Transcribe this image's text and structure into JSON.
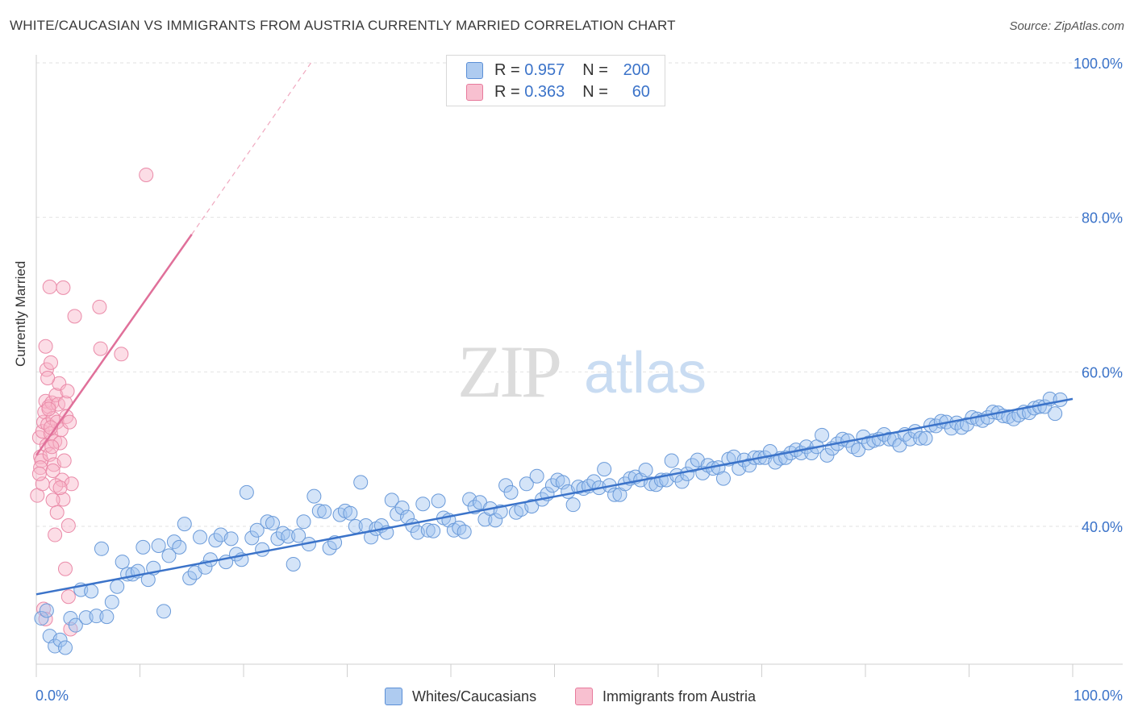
{
  "title": "WHITE/CAUCASIAN VS IMMIGRANTS FROM AUSTRIA CURRENTLY MARRIED CORRELATION CHART",
  "source": "Source: ZipAtlas.com",
  "watermark": {
    "zip": "ZIP",
    "atlas": "atlas"
  },
  "legend": {
    "r_label": "R =",
    "n_label": "N =",
    "rows": [
      {
        "r": "0.957",
        "n": "200",
        "fill": "#aecbf0",
        "stroke": "#5b8fd6"
      },
      {
        "r": "0.363",
        "n": "60",
        "fill": "#f8c0d0",
        "stroke": "#e77a9c"
      }
    ]
  },
  "bottom_legend": [
    {
      "label": "Whites/Caucasians",
      "fill": "#aecbf0",
      "stroke": "#5b8fd6"
    },
    {
      "label": "Immigrants from Austria",
      "fill": "#f8c0d0",
      "stroke": "#e77a9c"
    }
  ],
  "colors": {
    "blue": "#3b73c9",
    "blue_fill": "rgba(160,195,240,0.45)",
    "blue_stroke": "#6a9ad9",
    "pink": "#e0709a",
    "pink_fill": "rgba(248,180,200,0.45)",
    "pink_stroke": "#ea8aa8",
    "grid": "#e2e2e2",
    "tick_label": "#3b73c9"
  },
  "chart_data": {
    "type": "scatter",
    "title": "WHITE/CAUCASIAN VS IMMIGRANTS FROM AUSTRIA CURRENTLY MARRIED CORRELATION CHART",
    "xlabel": "",
    "ylabel": "Currently Married",
    "xlim": [
      0,
      100
    ],
    "ylim": [
      20,
      102
    ],
    "x_tick_labels": [
      "0.0%",
      "100.0%"
    ],
    "y_ticks": [
      40,
      60,
      80,
      100
    ],
    "y_tick_labels": [
      "40.0%",
      "60.0%",
      "80.0%",
      "100.0%"
    ],
    "grid": true,
    "series": [
      {
        "name": "Whites/Caucasians",
        "r": 0.957,
        "n": 200,
        "trend": {
          "x": [
            0,
            100
          ],
          "y": [
            31.2,
            56.5
          ]
        },
        "points": [
          [
            0.5,
            28.1
          ],
          [
            1.0,
            29.1
          ],
          [
            1.3,
            25.8
          ],
          [
            1.8,
            24.5
          ],
          [
            2.3,
            25.3
          ],
          [
            2.8,
            24.3
          ],
          [
            3.3,
            28.1
          ],
          [
            3.8,
            27.2
          ],
          [
            4.3,
            31.8
          ],
          [
            4.8,
            28.2
          ],
          [
            5.3,
            31.6
          ],
          [
            5.8,
            28.4
          ],
          [
            6.3,
            37.1
          ],
          [
            6.8,
            28.3
          ],
          [
            7.3,
            30.2
          ],
          [
            7.8,
            32.2
          ],
          [
            8.3,
            35.4
          ],
          [
            8.8,
            33.8
          ],
          [
            9.3,
            33.8
          ],
          [
            9.8,
            34.2
          ],
          [
            10.3,
            37.3
          ],
          [
            10.8,
            33.1
          ],
          [
            11.3,
            34.6
          ],
          [
            11.8,
            37.5
          ],
          [
            12.3,
            29.0
          ],
          [
            12.8,
            36.2
          ],
          [
            13.3,
            38.0
          ],
          [
            13.8,
            37.3
          ],
          [
            14.3,
            40.3
          ],
          [
            14.8,
            33.3
          ],
          [
            15.3,
            34.0
          ],
          [
            15.8,
            38.6
          ],
          [
            16.3,
            34.7
          ],
          [
            16.8,
            35.7
          ],
          [
            17.3,
            38.2
          ],
          [
            17.8,
            38.9
          ],
          [
            18.3,
            35.4
          ],
          [
            18.8,
            38.4
          ],
          [
            19.3,
            36.4
          ],
          [
            19.8,
            35.7
          ],
          [
            20.3,
            44.4
          ],
          [
            20.8,
            38.5
          ],
          [
            21.3,
            39.5
          ],
          [
            21.8,
            37.0
          ],
          [
            22.3,
            40.6
          ],
          [
            22.8,
            40.4
          ],
          [
            23.3,
            38.4
          ],
          [
            23.8,
            39.1
          ],
          [
            24.3,
            38.7
          ],
          [
            24.8,
            35.1
          ],
          [
            25.3,
            38.8
          ],
          [
            25.8,
            40.6
          ],
          [
            26.3,
            37.7
          ],
          [
            26.8,
            43.9
          ],
          [
            27.3,
            42.0
          ],
          [
            27.8,
            41.9
          ],
          [
            28.3,
            37.2
          ],
          [
            28.8,
            37.9
          ],
          [
            29.3,
            41.5
          ],
          [
            29.8,
            42.0
          ],
          [
            30.3,
            41.7
          ],
          [
            30.8,
            40.0
          ],
          [
            31.3,
            45.7
          ],
          [
            31.8,
            40.1
          ],
          [
            32.3,
            38.6
          ],
          [
            32.8,
            39.7
          ],
          [
            33.3,
            40.1
          ],
          [
            33.8,
            39.2
          ],
          [
            34.3,
            43.4
          ],
          [
            34.8,
            41.6
          ],
          [
            35.3,
            42.4
          ],
          [
            35.8,
            41.2
          ],
          [
            36.3,
            40.1
          ],
          [
            36.8,
            39.2
          ],
          [
            37.3,
            42.9
          ],
          [
            37.8,
            39.5
          ],
          [
            38.3,
            39.4
          ],
          [
            38.8,
            43.3
          ],
          [
            39.3,
            41.1
          ],
          [
            39.8,
            40.8
          ],
          [
            40.3,
            39.5
          ],
          [
            40.8,
            39.8
          ],
          [
            41.3,
            39.3
          ],
          [
            41.8,
            43.5
          ],
          [
            42.3,
            42.5
          ],
          [
            42.8,
            43.1
          ],
          [
            43.3,
            40.9
          ],
          [
            43.8,
            42.3
          ],
          [
            44.3,
            40.8
          ],
          [
            44.8,
            41.9
          ],
          [
            45.3,
            45.3
          ],
          [
            45.8,
            44.4
          ],
          [
            46.3,
            41.8
          ],
          [
            46.8,
            42.2
          ],
          [
            47.3,
            45.5
          ],
          [
            47.8,
            42.6
          ],
          [
            48.3,
            46.5
          ],
          [
            48.8,
            43.5
          ],
          [
            49.3,
            44.2
          ],
          [
            49.8,
            45.3
          ],
          [
            50.3,
            46.0
          ],
          [
            50.8,
            45.7
          ],
          [
            51.3,
            44.5
          ],
          [
            51.8,
            42.8
          ],
          [
            52.3,
            45.1
          ],
          [
            52.8,
            44.9
          ],
          [
            53.3,
            45.2
          ],
          [
            53.8,
            45.8
          ],
          [
            54.3,
            45.0
          ],
          [
            54.8,
            47.4
          ],
          [
            55.3,
            45.3
          ],
          [
            55.8,
            44.1
          ],
          [
            56.3,
            44.1
          ],
          [
            56.8,
            45.5
          ],
          [
            57.3,
            46.2
          ],
          [
            57.8,
            46.4
          ],
          [
            58.3,
            46.0
          ],
          [
            58.8,
            47.3
          ],
          [
            59.3,
            45.5
          ],
          [
            59.8,
            45.4
          ],
          [
            60.3,
            46.0
          ],
          [
            60.8,
            46.0
          ],
          [
            61.3,
            48.5
          ],
          [
            61.8,
            46.6
          ],
          [
            62.3,
            45.8
          ],
          [
            62.8,
            46.8
          ],
          [
            63.3,
            47.9
          ],
          [
            63.8,
            48.6
          ],
          [
            64.3,
            46.9
          ],
          [
            64.8,
            47.9
          ],
          [
            65.3,
            47.5
          ],
          [
            65.8,
            47.6
          ],
          [
            66.3,
            46.2
          ],
          [
            66.8,
            48.7
          ],
          [
            67.3,
            49.0
          ],
          [
            67.8,
            47.5
          ],
          [
            68.3,
            48.6
          ],
          [
            68.8,
            47.9
          ],
          [
            69.3,
            48.9
          ],
          [
            69.8,
            48.9
          ],
          [
            70.3,
            48.9
          ],
          [
            70.8,
            49.7
          ],
          [
            71.3,
            48.3
          ],
          [
            71.8,
            48.8
          ],
          [
            72.3,
            48.9
          ],
          [
            72.8,
            49.5
          ],
          [
            73.3,
            49.9
          ],
          [
            73.8,
            49.5
          ],
          [
            74.3,
            50.3
          ],
          [
            74.8,
            49.5
          ],
          [
            75.3,
            50.3
          ],
          [
            75.8,
            51.8
          ],
          [
            76.3,
            49.2
          ],
          [
            76.8,
            50.1
          ],
          [
            77.3,
            50.7
          ],
          [
            77.8,
            51.3
          ],
          [
            78.3,
            51.1
          ],
          [
            78.8,
            50.3
          ],
          [
            79.3,
            49.9
          ],
          [
            79.8,
            51.6
          ],
          [
            80.3,
            50.8
          ],
          [
            80.8,
            51.1
          ],
          [
            81.3,
            51.3
          ],
          [
            81.8,
            51.9
          ],
          [
            82.3,
            51.3
          ],
          [
            82.8,
            51.2
          ],
          [
            83.3,
            50.5
          ],
          [
            83.8,
            51.9
          ],
          [
            84.3,
            51.3
          ],
          [
            84.8,
            52.3
          ],
          [
            85.3,
            51.4
          ],
          [
            85.8,
            51.4
          ],
          [
            86.3,
            53.1
          ],
          [
            86.8,
            53.0
          ],
          [
            87.3,
            53.6
          ],
          [
            87.8,
            53.5
          ],
          [
            88.3,
            52.7
          ],
          [
            88.8,
            53.4
          ],
          [
            89.3,
            52.8
          ],
          [
            89.8,
            53.2
          ],
          [
            90.3,
            54.1
          ],
          [
            90.8,
            53.9
          ],
          [
            91.3,
            53.7
          ],
          [
            91.8,
            54.1
          ],
          [
            92.3,
            54.8
          ],
          [
            92.8,
            54.7
          ],
          [
            93.3,
            54.3
          ],
          [
            93.8,
            54.2
          ],
          [
            94.3,
            53.9
          ],
          [
            94.8,
            54.4
          ],
          [
            95.3,
            54.8
          ],
          [
            95.8,
            54.7
          ],
          [
            96.3,
            55.3
          ],
          [
            96.8,
            55.5
          ],
          [
            97.3,
            55.5
          ],
          [
            97.8,
            56.5
          ],
          [
            98.3,
            54.6
          ],
          [
            98.8,
            56.4
          ]
        ]
      },
      {
        "name": "Immigrants from Austria",
        "r": 0.363,
        "n": 60,
        "trend": {
          "x": [
            0,
            15
          ],
          "y": [
            49.2,
            77.8
          ]
        },
        "trend_dashed": {
          "x": [
            15,
            26.5
          ],
          "y": [
            77.8,
            100
          ]
        },
        "points": [
          [
            0.1,
            44.0
          ],
          [
            0.3,
            51.5
          ],
          [
            0.4,
            49.0
          ],
          [
            0.5,
            48.5
          ],
          [
            0.6,
            52.3
          ],
          [
            0.7,
            53.5
          ],
          [
            0.8,
            54.8
          ],
          [
            0.9,
            56.2
          ],
          [
            1.0,
            50.5
          ],
          [
            1.1,
            53.2
          ],
          [
            1.2,
            55.5
          ],
          [
            1.3,
            49.3
          ],
          [
            1.4,
            52.0
          ],
          [
            1.5,
            56.0
          ],
          [
            1.6,
            54.0
          ],
          [
            1.7,
            48.0
          ],
          [
            1.8,
            51.0
          ],
          [
            1.9,
            57.0
          ],
          [
            2.0,
            53.5
          ],
          [
            2.1,
            55.8
          ],
          [
            2.2,
            58.5
          ],
          [
            2.3,
            50.8
          ],
          [
            2.4,
            52.5
          ],
          [
            2.5,
            46.0
          ],
          [
            2.6,
            43.5
          ],
          [
            2.7,
            48.5
          ],
          [
            2.8,
            56.0
          ],
          [
            2.9,
            54.2
          ],
          [
            3.0,
            57.5
          ],
          [
            3.2,
            53.5
          ],
          [
            0.9,
            63.3
          ],
          [
            1.0,
            60.3
          ],
          [
            1.1,
            59.2
          ],
          [
            1.4,
            61.2
          ],
          [
            1.3,
            71.0
          ],
          [
            2.6,
            70.9
          ],
          [
            3.7,
            67.2
          ],
          [
            6.1,
            68.4
          ],
          [
            6.2,
            63.0
          ],
          [
            8.2,
            62.3
          ],
          [
            10.6,
            85.5
          ],
          [
            1.6,
            43.4
          ],
          [
            1.8,
            38.9
          ],
          [
            1.9,
            45.3
          ],
          [
            3.1,
            40.1
          ],
          [
            3.4,
            45.5
          ],
          [
            2.8,
            34.5
          ],
          [
            3.1,
            30.9
          ],
          [
            3.3,
            26.7
          ],
          [
            0.7,
            29.3
          ],
          [
            0.9,
            28.0
          ],
          [
            1.2,
            55.2
          ],
          [
            1.5,
            50.3
          ],
          [
            0.4,
            47.6
          ],
          [
            0.6,
            45.5
          ],
          [
            2.0,
            41.8
          ],
          [
            1.6,
            47.2
          ],
          [
            1.4,
            52.8
          ],
          [
            0.3,
            46.8
          ],
          [
            2.3,
            45.0
          ]
        ]
      }
    ]
  }
}
